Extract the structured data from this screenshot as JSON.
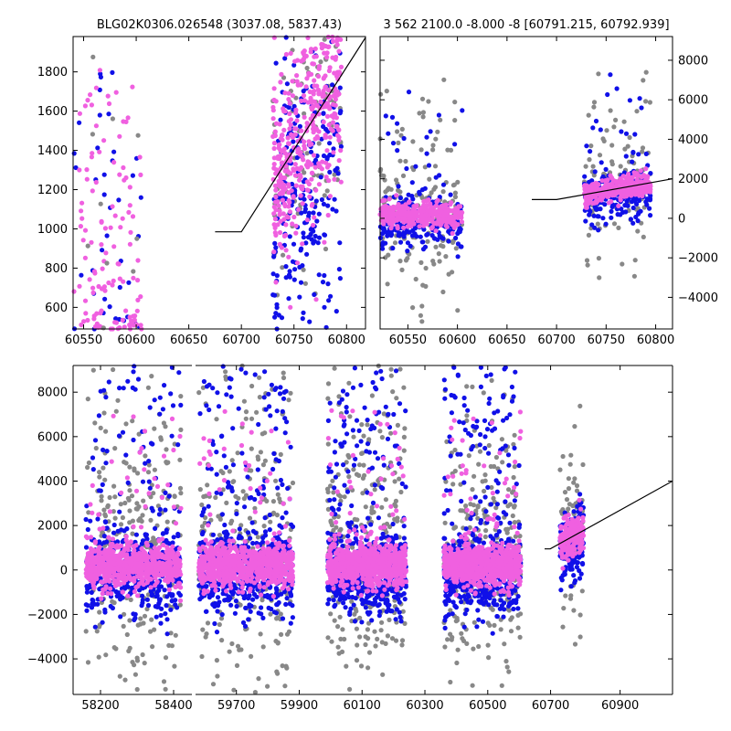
{
  "colors": {
    "survey_a": "#1010e8",
    "survey_b": "#f060e0",
    "survey_c": "#888888",
    "model": "#000000"
  },
  "chart_data": [
    {
      "id": "zoom",
      "type": "scatter",
      "title": "BLG02K0306.026548 (3037.08, 5837.43)",
      "xlim": [
        60540,
        60818
      ],
      "ylim": [
        490,
        1980
      ],
      "xticks": [
        60550,
        60600,
        60650,
        60700,
        60750,
        60800
      ],
      "yticks": [
        600,
        800,
        1000,
        1200,
        1400,
        1600,
        1800
      ],
      "yaxis_side": "left",
      "clusters": [
        {
          "x0": 60540,
          "x1": 60605,
          "y0": 490,
          "y1": 1980,
          "counts": {
            "a": 40,
            "b": 120,
            "c": 10
          }
        },
        {
          "x0": 60730,
          "x1": 60795,
          "y0": 490,
          "y1": 1980,
          "counts": {
            "a": 260,
            "b": 420,
            "c": 120
          }
        }
      ],
      "model": {
        "x": [
          60675,
          60700,
          60818
        ],
        "y": [
          985,
          985,
          1975
        ]
      }
    },
    {
      "id": "season",
      "type": "scatter",
      "title": "3 562 2100.0 -8.000 -8 [60791.215, 60792.939]",
      "xlim": [
        60522,
        60817
      ],
      "ylim": [
        -5600,
        9200
      ],
      "xticks": [
        60550,
        60600,
        60650,
        60700,
        60750,
        60800
      ],
      "yticks": [
        -4000,
        -2000,
        0,
        2000,
        4000,
        6000,
        8000
      ],
      "yaxis_side": "right",
      "clusters": [
        {
          "x0": 60522,
          "x1": 60605,
          "y0": -5600,
          "y1": 9200,
          "counts": {
            "a": 260,
            "b": 340,
            "c": 150
          }
        },
        {
          "x0": 60728,
          "x1": 60795,
          "y0": -5600,
          "y1": 9200,
          "counts": {
            "a": 200,
            "b": 300,
            "c": 90
          }
        }
      ],
      "model": {
        "x": [
          60675,
          60700,
          60817
        ],
        "y": [
          950,
          950,
          2000
        ]
      }
    },
    {
      "id": "full",
      "type": "scatter",
      "title": "",
      "ylim": [
        -5600,
        9200
      ],
      "yticks": [
        -4000,
        -2000,
        0,
        2000,
        4000,
        6000,
        8000
      ],
      "yaxis_side": "left",
      "segments": [
        {
          "xlim": [
            58125,
            58450
          ],
          "xticks": [
            58200,
            58400
          ],
          "cluster": {
            "x0": 58160,
            "x1": 58420
          },
          "counts": {
            "a": 500,
            "b": 700,
            "c": 260
          }
        },
        {
          "xlim": [
            59570,
            60710
          ],
          "xticks": [
            59700,
            59900,
            60100,
            60300,
            60500,
            60700
          ],
          "clusters": [
            {
              "x0": 59580,
              "x1": 59880,
              "counts": {
                "a": 600,
                "b": 800,
                "c": 260
              }
            },
            {
              "x0": 59990,
              "x1": 60240,
              "counts": {
                "a": 650,
                "b": 800,
                "c": 300
              }
            },
            {
              "x0": 60360,
              "x1": 60605,
              "counts": {
                "a": 600,
                "b": 800,
                "c": 260
              }
            }
          ]
        },
        {
          "xlim": [
            60710,
            61050
          ],
          "xticks": [
            60900
          ],
          "cluster": {
            "x0": 60728,
            "x1": 60795
          },
          "counts": {
            "a": 150,
            "b": 200,
            "c": 60
          }
        }
      ],
      "model": {
        "x": [
          60675,
          60700,
          61050
        ],
        "y": [
          950,
          950,
          4000
        ]
      }
    }
  ]
}
